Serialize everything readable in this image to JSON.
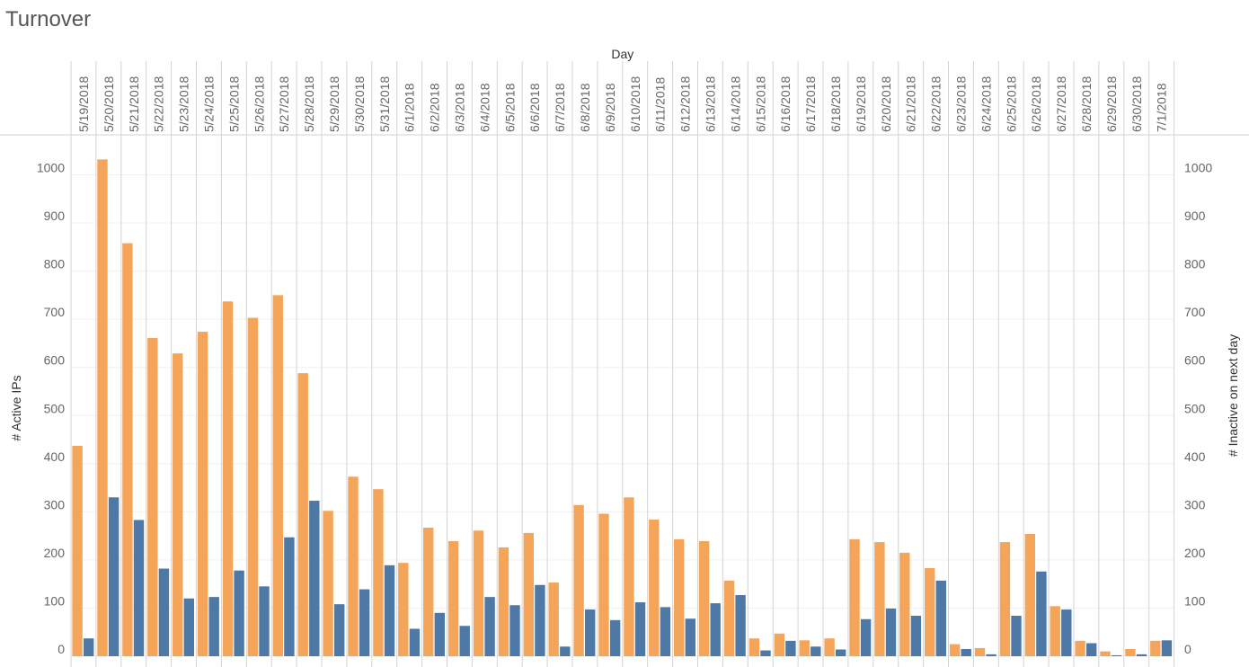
{
  "chart_data": {
    "type": "bar",
    "title": "Turnover",
    "column_header": "Day",
    "ylabel_left": "# Active IPs",
    "ylabel_right": "# Inactive on next day",
    "ylim": [
      0,
      1050
    ],
    "yticks": [
      0,
      100,
      200,
      300,
      400,
      500,
      600,
      700,
      800,
      900,
      1000
    ],
    "grid": true,
    "categories": [
      "5/19/2018",
      "5/20/2018",
      "5/21/2018",
      "5/22/2018",
      "5/23/2018",
      "5/24/2018",
      "5/25/2018",
      "5/26/2018",
      "5/27/2018",
      "5/28/2018",
      "5/29/2018",
      "5/30/2018",
      "5/31/2018",
      "6/1/2018",
      "6/2/2018",
      "6/3/2018",
      "6/4/2018",
      "6/5/2018",
      "6/6/2018",
      "6/7/2018",
      "6/8/2018",
      "6/9/2018",
      "6/10/2018",
      "6/11/2018",
      "6/12/2018",
      "6/13/2018",
      "6/14/2018",
      "6/15/2018",
      "6/16/2018",
      "6/17/2018",
      "6/18/2018",
      "6/19/2018",
      "6/20/2018",
      "6/21/2018",
      "6/22/2018",
      "6/23/2018",
      "6/24/2018",
      "6/25/2018",
      "6/26/2018",
      "6/27/2018",
      "6/28/2018",
      "6/29/2018",
      "6/30/2018",
      "7/1/2018"
    ],
    "series": [
      {
        "name": "# Active IPs",
        "color": "#f5a55a",
        "values": [
          437,
          1032,
          858,
          661,
          629,
          674,
          737,
          703,
          750,
          588,
          302,
          373,
          347,
          194,
          267,
          239,
          261,
          226,
          256,
          153,
          314,
          296,
          330,
          284,
          243,
          239,
          157,
          37,
          47,
          33,
          37,
          243,
          237,
          215,
          183,
          25,
          17,
          237,
          254,
          104,
          32,
          10,
          15,
          32
        ]
      },
      {
        "name": "# Inactive on next day",
        "color": "#4e79a7",
        "values": [
          37,
          330,
          283,
          182,
          120,
          123,
          178,
          145,
          247,
          323,
          108,
          139,
          189,
          57,
          90,
          63,
          123,
          106,
          148,
          20,
          97,
          75,
          112,
          102,
          78,
          110,
          127,
          12,
          32,
          20,
          14,
          77,
          99,
          84,
          157,
          15,
          4,
          84,
          176,
          97,
          27,
          2,
          4,
          33
        ]
      }
    ]
  }
}
